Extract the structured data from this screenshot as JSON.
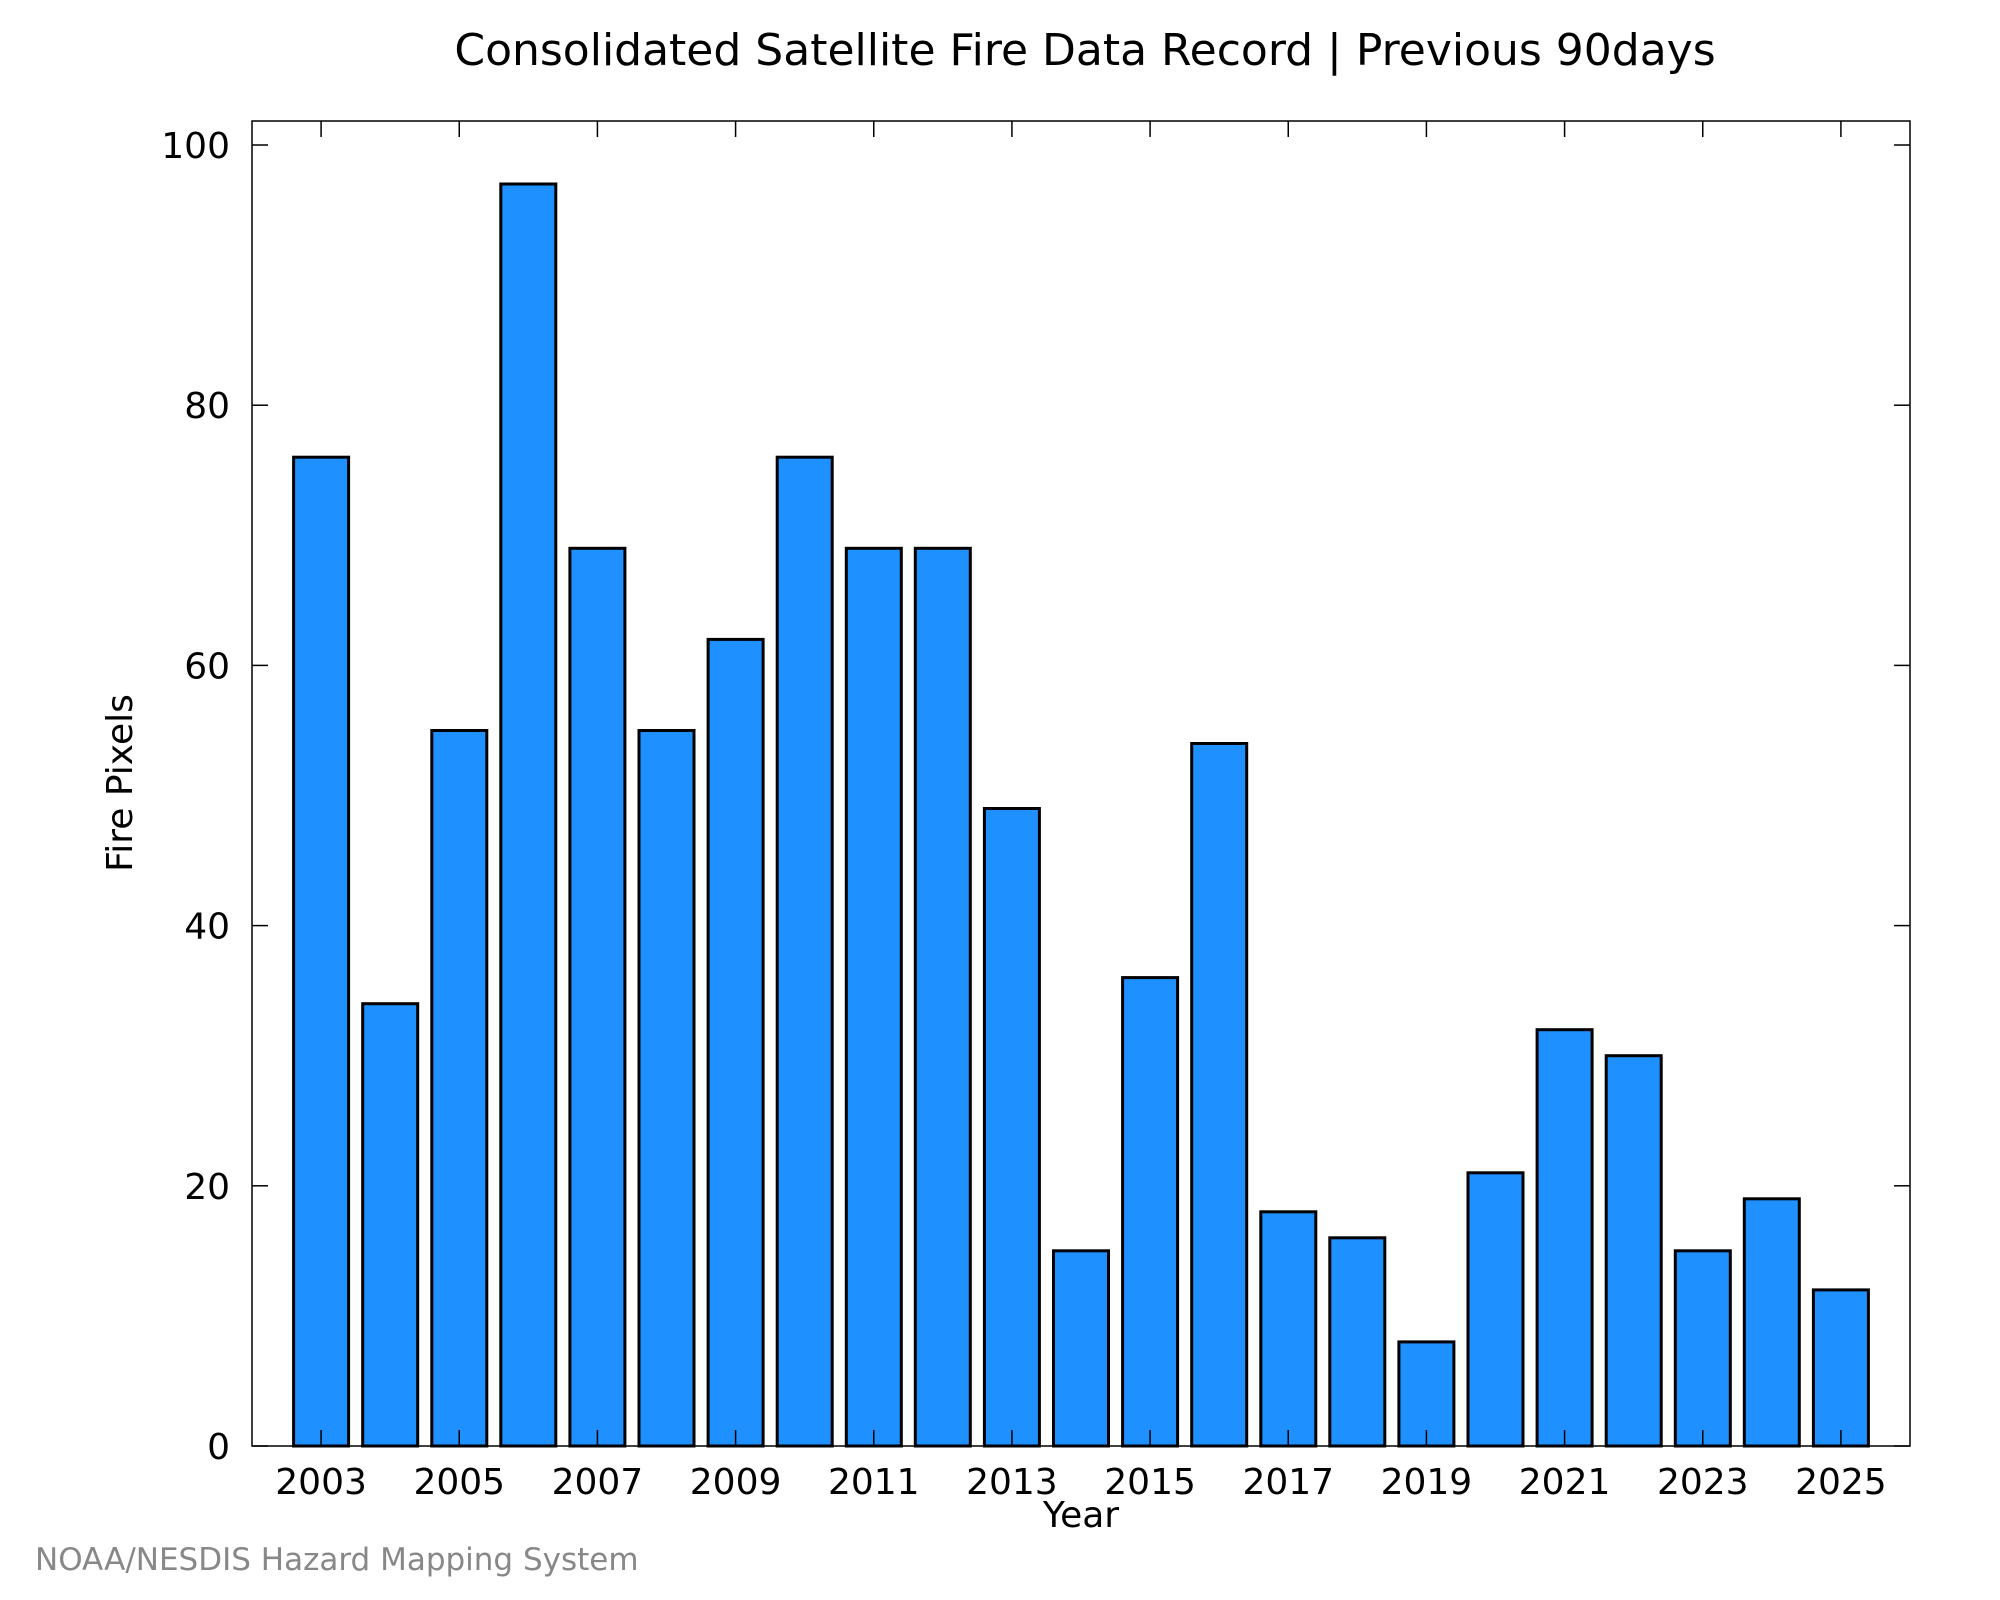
{
  "chart_data": {
    "type": "bar",
    "title": "Consolidated Satellite Fire Data Record | Previous 90days",
    "xlabel": "Year",
    "ylabel": "Fire Pixels",
    "ylim": [
      0,
      100
    ],
    "xlim": [
      2002,
      2026
    ],
    "yticks": [
      0,
      20,
      40,
      60,
      80,
      100
    ],
    "xticks": [
      2003,
      2005,
      2007,
      2009,
      2011,
      2013,
      2015,
      2017,
      2019,
      2021,
      2023,
      2025
    ],
    "categories": [
      2003,
      2004,
      2005,
      2006,
      2007,
      2008,
      2009,
      2010,
      2011,
      2012,
      2013,
      2014,
      2015,
      2016,
      2017,
      2018,
      2019,
      2020,
      2021,
      2022,
      2023,
      2024,
      2025
    ],
    "values": [
      76,
      34,
      55,
      97,
      69,
      55,
      62,
      76,
      69,
      69,
      49,
      15,
      36,
      54,
      18,
      16,
      8,
      21,
      32,
      30,
      15,
      19,
      12
    ],
    "bar_color": "#1E90FF",
    "grid": false,
    "legend": "none"
  },
  "footer": "NOAA/NESDIS Hazard Mapping System"
}
